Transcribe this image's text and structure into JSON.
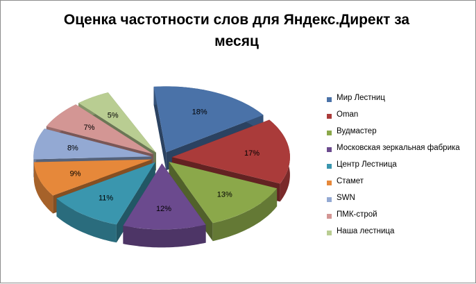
{
  "chart_data": {
    "type": "pie",
    "title": "Оценка частотности слов для Яндекс.Директ за месяц",
    "categories": [
      "Мир Лестниц",
      "Oman",
      "Вудмастер",
      "Московская зеркальная фабрика",
      "Центр Лестница",
      "Стамет",
      "SWN",
      "ПМК-строй",
      "Наша лестница"
    ],
    "values": [
      18,
      17,
      13,
      12,
      11,
      9,
      8,
      7,
      5
    ],
    "labels": [
      "18%",
      "17%",
      "13%",
      "12%",
      "11%",
      "9%",
      "8%",
      "7%",
      "5%"
    ],
    "colors": [
      "#4a72a8",
      "#aa3b3a",
      "#8ba84a",
      "#6b4a8e",
      "#3a96ae",
      "#e6883a",
      "#93a9d3",
      "#d39694",
      "#b9cd92"
    ],
    "exploded": true,
    "three_d": true,
    "legend_position": "right"
  }
}
